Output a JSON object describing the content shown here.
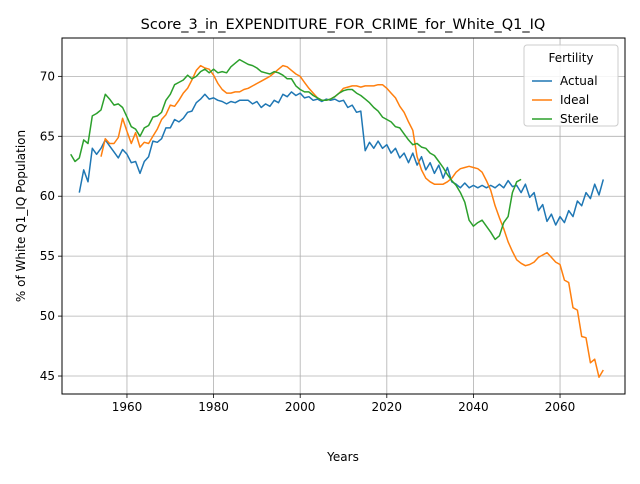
{
  "chart_data": {
    "type": "line",
    "title": "Score_3_in_EXPENDITURE_FOR_CRIME_for_White_Q1_IQ",
    "xlabel": "Years",
    "ylabel": "% of White Q1_IQ Population",
    "xlim": [
      1945,
      2075
    ],
    "ylim": [
      43.5,
      73.2
    ],
    "xticks": [
      1960,
      1980,
      2000,
      2020,
      2040,
      2060
    ],
    "yticks": [
      45,
      50,
      55,
      60,
      65,
      70
    ],
    "grid": true,
    "legend": {
      "title": "Fertility",
      "position": "top-right"
    },
    "series": [
      {
        "name": "Actual",
        "color": "#1f77b4",
        "x": [
          1949,
          1950,
          1951,
          1952,
          1953,
          1954,
          1955,
          1956,
          1957,
          1958,
          1959,
          1960,
          1961,
          1962,
          1963,
          1964,
          1965,
          1966,
          1967,
          1968,
          1969,
          1970,
          1971,
          1972,
          1973,
          1974,
          1975,
          1976,
          1977,
          1978,
          1979,
          1980,
          1981,
          1982,
          1983,
          1984,
          1985,
          1986,
          1987,
          1988,
          1989,
          1990,
          1991,
          1992,
          1993,
          1994,
          1995,
          1996,
          1997,
          1998,
          1999,
          2000,
          2001,
          2002,
          2003,
          2004,
          2005,
          2006,
          2007,
          2008,
          2009,
          2010,
          2011,
          2012,
          2013,
          2014,
          2015,
          2016,
          2017,
          2018,
          2019,
          2020,
          2021,
          2022,
          2023,
          2024,
          2025,
          2026,
          2027,
          2028,
          2029,
          2030,
          2031,
          2032,
          2033,
          2034,
          2035,
          2036,
          2037,
          2038,
          2039,
          2040,
          2041,
          2042,
          2043,
          2044,
          2045,
          2046,
          2047,
          2048,
          2049,
          2050,
          2051,
          2052,
          2053,
          2054,
          2055,
          2056,
          2057,
          2058,
          2059,
          2060,
          2061,
          2062,
          2063,
          2064,
          2065,
          2066,
          2067,
          2068,
          2069,
          2070
        ],
        "values": [
          60.3,
          62.2,
          61.2,
          64.0,
          63.5,
          64.0,
          64.7,
          64.2,
          63.7,
          63.2,
          63.9,
          63.5,
          62.8,
          62.9,
          61.9,
          62.9,
          63.3,
          64.6,
          64.5,
          64.8,
          65.7,
          65.7,
          66.4,
          66.2,
          66.5,
          67.0,
          67.1,
          67.8,
          68.1,
          68.5,
          68.1,
          68.2,
          68.0,
          67.9,
          67.7,
          67.9,
          67.8,
          68.0,
          68.0,
          68.0,
          67.7,
          67.9,
          67.4,
          67.7,
          67.5,
          68.0,
          67.8,
          68.5,
          68.3,
          68.7,
          68.4,
          68.6,
          68.2,
          68.3,
          68.0,
          68.1,
          67.9,
          68.1,
          68.0,
          68.1,
          67.9,
          68.0,
          67.4,
          67.6,
          67.0,
          67.1,
          63.8,
          64.5,
          64.0,
          64.6,
          64.0,
          64.3,
          63.6,
          64.0,
          63.2,
          63.6,
          62.8,
          63.6,
          62.6,
          63.3,
          62.2,
          62.8,
          61.9,
          62.6,
          61.5,
          62.4,
          61.2,
          61.0,
          60.7,
          61.1,
          60.7,
          60.9,
          60.7,
          60.9,
          60.7,
          60.9,
          60.7,
          61.0,
          60.7,
          61.3,
          60.8,
          60.9,
          60.3,
          61.0,
          59.9,
          60.3,
          58.8,
          59.3,
          57.9,
          58.5,
          57.6,
          58.3,
          57.8,
          58.8,
          58.3,
          59.6,
          59.2,
          60.3,
          59.8,
          61.0,
          60.1,
          61.4
        ]
      },
      {
        "name": "Ideal",
        "color": "#ff7f0e",
        "x": [
          1954,
          1955,
          1956,
          1957,
          1958,
          1959,
          1960,
          1961,
          1962,
          1963,
          1964,
          1965,
          1966,
          1967,
          1968,
          1969,
          1970,
          1971,
          1972,
          1973,
          1974,
          1975,
          1976,
          1977,
          1978,
          1979,
          1980,
          1981,
          1982,
          1983,
          1984,
          1985,
          1986,
          1987,
          1988,
          1989,
          1990,
          1991,
          1992,
          1993,
          1994,
          1995,
          1996,
          1997,
          1998,
          1999,
          2000,
          2001,
          2002,
          2003,
          2004,
          2005,
          2006,
          2007,
          2008,
          2009,
          2010,
          2011,
          2012,
          2013,
          2014,
          2015,
          2016,
          2017,
          2018,
          2019,
          2020,
          2021,
          2022,
          2023,
          2024,
          2025,
          2026,
          2027,
          2028,
          2029,
          2030,
          2031,
          2032,
          2033,
          2034,
          2035,
          2036,
          2037,
          2038,
          2039,
          2040,
          2041,
          2042,
          2043,
          2044,
          2045,
          2046,
          2047,
          2048,
          2049,
          2050,
          2051,
          2052,
          2053,
          2054,
          2055,
          2056,
          2057,
          2058,
          2059,
          2060,
          2061,
          2062,
          2063,
          2064,
          2065,
          2066,
          2067,
          2068,
          2069,
          2070
        ],
        "values": [
          63.3,
          64.8,
          64.4,
          64.4,
          64.9,
          66.5,
          65.4,
          64.4,
          65.3,
          64.1,
          64.5,
          64.4,
          65.0,
          65.6,
          66.4,
          66.8,
          67.6,
          67.5,
          68.0,
          68.6,
          69.0,
          69.7,
          70.5,
          70.9,
          70.7,
          70.6,
          70.1,
          69.4,
          68.9,
          68.6,
          68.6,
          68.7,
          68.7,
          68.9,
          69.0,
          69.2,
          69.4,
          69.6,
          69.8,
          70.0,
          70.3,
          70.6,
          70.9,
          70.8,
          70.5,
          70.2,
          70.0,
          69.5,
          69.0,
          68.6,
          68.2,
          68.0,
          68.0,
          68.1,
          68.3,
          68.6,
          69.0,
          69.1,
          69.2,
          69.2,
          69.1,
          69.2,
          69.2,
          69.2,
          69.3,
          69.3,
          69.0,
          68.6,
          68.2,
          67.5,
          67.0,
          66.2,
          65.5,
          63.3,
          62.2,
          61.5,
          61.2,
          61.0,
          61.0,
          61.0,
          61.2,
          61.5,
          62.0,
          62.3,
          62.4,
          62.5,
          62.4,
          62.3,
          62.0,
          61.3,
          60.5,
          59.2,
          58.2,
          57.3,
          56.2,
          55.4,
          54.7,
          54.4,
          54.2,
          54.3,
          54.5,
          54.9,
          55.1,
          55.3,
          54.9,
          54.5,
          54.3,
          53.0,
          52.8,
          50.7,
          50.5,
          48.3,
          48.2,
          46.1,
          46.4,
          44.9,
          45.5
        ]
      },
      {
        "name": "Sterile",
        "color": "#2ca02c",
        "x": [
          1947,
          1948,
          1949,
          1950,
          1951,
          1952,
          1953,
          1954,
          1955,
          1956,
          1957,
          1958,
          1959,
          1960,
          1961,
          1962,
          1963,
          1964,
          1965,
          1966,
          1967,
          1968,
          1969,
          1970,
          1971,
          1972,
          1973,
          1974,
          1975,
          1976,
          1977,
          1978,
          1979,
          1980,
          1981,
          1982,
          1983,
          1984,
          1985,
          1986,
          1987,
          1988,
          1989,
          1990,
          1991,
          1992,
          1993,
          1994,
          1995,
          1996,
          1997,
          1998,
          1999,
          2000,
          2001,
          2002,
          2003,
          2004,
          2005,
          2006,
          2007,
          2008,
          2009,
          2010,
          2011,
          2012,
          2013,
          2014,
          2015,
          2016,
          2017,
          2018,
          2019,
          2020,
          2021,
          2022,
          2023,
          2024,
          2025,
          2026,
          2027,
          2028,
          2029,
          2030,
          2031,
          2032,
          2033,
          2034,
          2035,
          2036,
          2037,
          2038,
          2039,
          2040,
          2041,
          2042,
          2043,
          2044,
          2045,
          2046,
          2047,
          2048,
          2049,
          2050,
          2051
        ],
        "values": [
          63.5,
          62.9,
          63.2,
          64.7,
          64.4,
          66.7,
          66.9,
          67.2,
          68.5,
          68.1,
          67.6,
          67.7,
          67.4,
          66.6,
          65.8,
          65.6,
          65.0,
          65.7,
          65.9,
          66.6,
          66.7,
          67.0,
          68.0,
          68.5,
          69.3,
          69.5,
          69.7,
          70.1,
          69.8,
          70.0,
          70.4,
          70.6,
          70.3,
          70.6,
          70.3,
          70.4,
          70.3,
          70.8,
          71.1,
          71.4,
          71.2,
          71.0,
          70.9,
          70.7,
          70.4,
          70.3,
          70.2,
          70.4,
          70.3,
          70.1,
          69.8,
          69.8,
          69.2,
          68.9,
          68.7,
          68.7,
          68.4,
          68.2,
          68.0,
          68.0,
          68.1,
          68.3,
          68.6,
          68.8,
          68.9,
          68.9,
          68.6,
          68.4,
          68.1,
          67.8,
          67.4,
          67.1,
          66.6,
          66.4,
          66.2,
          65.8,
          65.7,
          65.2,
          64.7,
          64.3,
          64.4,
          64.1,
          64.0,
          63.6,
          63.4,
          62.9,
          62.4,
          61.8,
          61.3,
          60.9,
          60.3,
          59.5,
          58.0,
          57.5,
          57.8,
          58.0,
          57.5,
          57.0,
          56.4,
          56.7,
          57.8,
          58.3,
          60.3,
          61.2,
          61.4
        ]
      }
    ]
  }
}
